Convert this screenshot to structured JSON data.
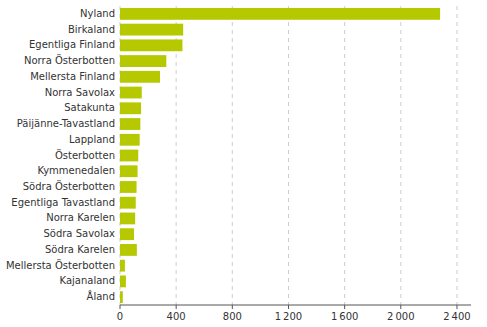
{
  "chart_data": {
    "type": "bar",
    "orientation": "horizontal",
    "categories": [
      "Nyland",
      "Birkaland",
      "Egentliga Finland",
      "Norra Österbotten",
      "Mellersta Finland",
      "Norra Savolax",
      "Satakunta",
      "Päijänne-Tavastland",
      "Lappland",
      "Österbotten",
      "Kymmenedalen",
      "Södra Österbotten",
      "Egentliga Tavastland",
      "Norra Karelen",
      "Södra Savolax",
      "Södra Karelen",
      "Mellersta Österbotten",
      "Kajanaland",
      "Åland"
    ],
    "values": [
      2280,
      450,
      445,
      330,
      285,
      155,
      150,
      145,
      140,
      130,
      125,
      118,
      112,
      108,
      100,
      120,
      35,
      42,
      20
    ],
    "color": "#b5c800",
    "xlim": [
      0,
      2500
    ],
    "xticks": [
      0,
      400,
      800,
      {
        "value": 1200,
        "label": "1 200"
      },
      {
        "value": 1600,
        "label": "1 600"
      },
      {
        "value": 2000,
        "label": "2 000"
      },
      {
        "value": 2400,
        "label": "2 400"
      }
    ],
    "grid": true
  }
}
